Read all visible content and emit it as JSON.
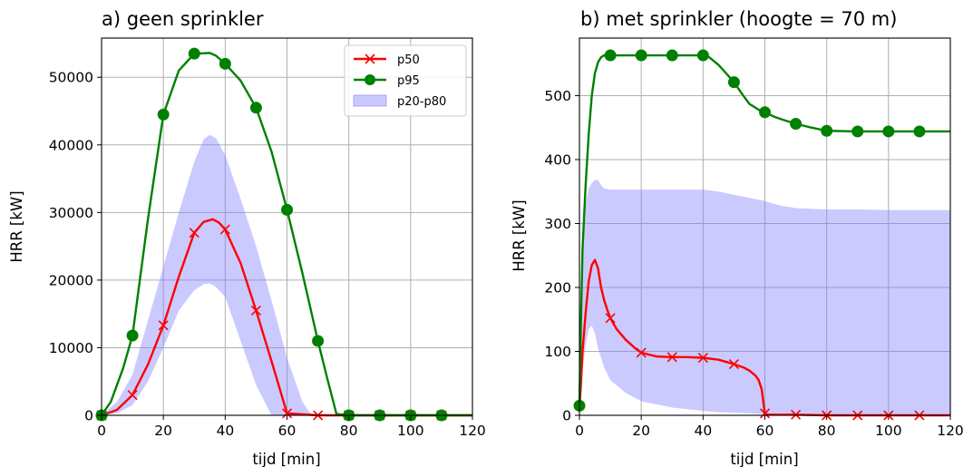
{
  "chart_data": [
    {
      "type": "line",
      "title": "a) geen sprinkler",
      "xlabel": "tijd [min]",
      "ylabel": "HRR [kW]",
      "xlim": [
        0,
        120
      ],
      "ylim": [
        0,
        55800
      ],
      "xticks": [
        0,
        20,
        40,
        60,
        80,
        100,
        120
      ],
      "yticks": [
        0,
        10000,
        20000,
        30000,
        40000,
        50000
      ],
      "grid": true,
      "legend": {
        "placement": "top-right",
        "entries": [
          "p50",
          "p95",
          "p20-p80"
        ]
      },
      "series": [
        {
          "name": "p50",
          "color": "#ff0000",
          "marker": "x",
          "x": [
            0,
            5,
            10,
            15,
            20,
            25,
            30,
            33,
            36,
            38,
            40,
            45,
            50,
            55,
            60,
            70,
            80,
            90,
            100,
            110,
            120
          ],
          "y": [
            0,
            800,
            3000,
            7500,
            13300,
            20500,
            27000,
            28600,
            29000,
            28500,
            27500,
            22500,
            15500,
            8000,
            300,
            0,
            0,
            0,
            0,
            0,
            0
          ],
          "marker_x": [
            0,
            10,
            20,
            30,
            40,
            50,
            60,
            70,
            80,
            90,
            100,
            110
          ]
        },
        {
          "name": "p95",
          "color": "#008000",
          "marker": "o",
          "x": [
            0,
            3,
            7,
            10,
            15,
            20,
            25,
            30,
            35,
            37,
            40,
            45,
            50,
            55,
            60,
            65,
            70,
            73,
            76,
            80,
            90,
            100,
            110,
            120
          ],
          "y": [
            0,
            2000,
            7000,
            11800,
            29000,
            44500,
            51000,
            53500,
            53600,
            53200,
            52000,
            49500,
            45500,
            39000,
            30400,
            21000,
            11000,
            5500,
            200,
            0,
            0,
            0,
            0,
            0
          ],
          "marker_x": [
            0,
            10,
            20,
            30,
            40,
            50,
            60,
            70,
            80,
            90,
            100,
            110
          ]
        }
      ],
      "band": {
        "name": "p20-p80",
        "color": "#7b7bff",
        "alpha": 0.4,
        "x": [
          0,
          5,
          10,
          15,
          20,
          25,
          30,
          33,
          35,
          37,
          40,
          45,
          50,
          55,
          60,
          65,
          68,
          70,
          120
        ],
        "upper": [
          0,
          2000,
          6000,
          14000,
          22000,
          30000,
          37500,
          40800,
          41500,
          41000,
          38500,
          32000,
          25000,
          17000,
          8500,
          2000,
          0,
          0,
          0
        ],
        "lower": [
          0,
          300,
          1500,
          5000,
          10000,
          15500,
          18500,
          19400,
          19500,
          19000,
          17500,
          11000,
          4500,
          0,
          0,
          0,
          0,
          0,
          0
        ]
      }
    },
    {
      "type": "line",
      "title": "b) met sprinkler (hoogte = 70 m)",
      "xlabel": "tijd [min]",
      "ylabel": "HRR [kW]",
      "xlim": [
        0,
        120
      ],
      "ylim": [
        0,
        590
      ],
      "xticks": [
        0,
        20,
        40,
        60,
        80,
        100,
        120
      ],
      "yticks": [
        0,
        100,
        200,
        300,
        400,
        500
      ],
      "grid": true,
      "series": [
        {
          "name": "p50",
          "color": "#ff0000",
          "marker": "x",
          "x": [
            0,
            0.5,
            1,
            2,
            3,
            4,
            5,
            6,
            7,
            8,
            9,
            10,
            12,
            15,
            18,
            20,
            25,
            30,
            35,
            40,
            45,
            50,
            53,
            55,
            57,
            58,
            59,
            59.5,
            60,
            61,
            65,
            70,
            80,
            90,
            100,
            110,
            120
          ],
          "y": [
            10,
            50,
            100,
            160,
            210,
            235,
            243,
            230,
            200,
            180,
            165,
            152,
            135,
            118,
            105,
            98,
            92,
            91,
            91,
            90,
            87,
            80,
            75,
            70,
            62,
            55,
            40,
            20,
            3,
            1,
            1,
            1,
            0,
            0,
            0,
            0,
            0
          ],
          "marker_x": [
            10,
            20,
            30,
            40,
            50,
            60,
            70,
            80,
            90,
            100,
            110
          ]
        },
        {
          "name": "p95",
          "color": "#008000",
          "marker": "o",
          "x": [
            0,
            0.5,
            1,
            2,
            3,
            4,
            5,
            6,
            7,
            8,
            9,
            10,
            20,
            30,
            40,
            42,
            45,
            48,
            50,
            53,
            55,
            58,
            60,
            63,
            66,
            70,
            75,
            80,
            90,
            100,
            110,
            120
          ],
          "y": [
            15,
            150,
            260,
            360,
            440,
            500,
            535,
            552,
            560,
            563,
            563,
            563,
            563,
            563,
            563,
            560,
            548,
            532,
            521,
            500,
            487,
            478,
            474,
            467,
            462,
            456,
            450,
            445,
            444,
            444,
            444,
            444
          ],
          "marker_x": [
            0,
            10,
            20,
            30,
            40,
            50,
            60,
            70,
            80,
            90,
            100,
            110
          ]
        }
      ],
      "band": {
        "name": "p20-p80",
        "color": "#7b7bff",
        "alpha": 0.4,
        "x": [
          0,
          0.5,
          1,
          2,
          3,
          4,
          5,
          6,
          7,
          8,
          10,
          15,
          20,
          30,
          40,
          45,
          50,
          55,
          60,
          65,
          70,
          80,
          90,
          100,
          110,
          120
        ],
        "upper": [
          0,
          150,
          260,
          330,
          355,
          363,
          368,
          368,
          360,
          355,
          353,
          353,
          353,
          353,
          353,
          350,
          345,
          340,
          335,
          328,
          324,
          322,
          322,
          321,
          321,
          321
        ],
        "lower": [
          0,
          30,
          70,
          110,
          135,
          140,
          128,
          105,
          90,
          75,
          55,
          35,
          22,
          12,
          7,
          5,
          4,
          3,
          2,
          2,
          1,
          1,
          0,
          0,
          0,
          0
        ]
      }
    }
  ]
}
